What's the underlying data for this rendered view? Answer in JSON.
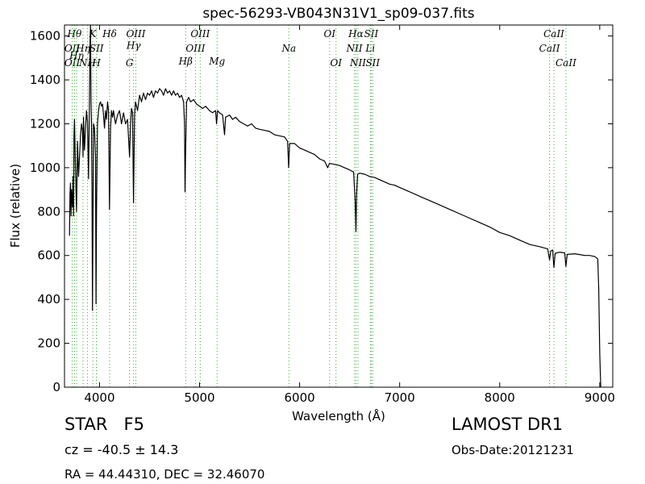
{
  "chart_data": {
    "type": "line",
    "title": "spec-56293-VB043N31V1_sp09-037.fits",
    "xlabel": "Wavelength (Å)",
    "ylabel": "Flux (relative)",
    "xlim": [
      3650,
      9130
    ],
    "ylim": [
      0,
      1650
    ],
    "xticks": [
      4000,
      5000,
      6000,
      7000,
      8000,
      9000
    ],
    "yticks": [
      0,
      200,
      400,
      600,
      800,
      1000,
      1200,
      1400,
      1600
    ],
    "grid": false,
    "line_color": "#000000",
    "marker_line_color": "#33aa33",
    "series": [
      {
        "values": [
          [
            3700,
            690
          ],
          [
            3705,
            880
          ],
          [
            3710,
            930
          ],
          [
            3715,
            780
          ],
          [
            3720,
            900
          ],
          [
            3730,
            820
          ],
          [
            3735,
            960
          ],
          [
            3740,
            780
          ],
          [
            3745,
            1150
          ],
          [
            3750,
            1220
          ],
          [
            3760,
            1000
          ],
          [
            3770,
            800
          ],
          [
            3780,
            1120
          ],
          [
            3790,
            960
          ],
          [
            3800,
            1050
          ],
          [
            3810,
            1150
          ],
          [
            3820,
            1200
          ],
          [
            3830,
            1170
          ],
          [
            3835,
            1050
          ],
          [
            3840,
            1230
          ],
          [
            3850,
            1080
          ],
          [
            3860,
            1180
          ],
          [
            3870,
            1260
          ],
          [
            3880,
            1210
          ],
          [
            3890,
            950
          ],
          [
            3900,
            1320
          ],
          [
            3905,
            1560
          ],
          [
            3910,
            1650
          ],
          [
            3915,
            1300
          ],
          [
            3920,
            1200
          ],
          [
            3925,
            900
          ],
          [
            3930,
            350
          ],
          [
            3935,
            800
          ],
          [
            3940,
            1200
          ],
          [
            3950,
            1180
          ],
          [
            3960,
            1050
          ],
          [
            3965,
            380
          ],
          [
            3970,
            800
          ],
          [
            3980,
            1200
          ],
          [
            3990,
            1260
          ],
          [
            4000,
            1290
          ],
          [
            4010,
            1300
          ],
          [
            4020,
            1280
          ],
          [
            4030,
            1290
          ],
          [
            4040,
            1240
          ],
          [
            4050,
            1180
          ],
          [
            4060,
            1260
          ],
          [
            4070,
            1220
          ],
          [
            4080,
            1300
          ],
          [
            4090,
            1260
          ],
          [
            4100,
            810
          ],
          [
            4110,
            1180
          ],
          [
            4120,
            1260
          ],
          [
            4130,
            1230
          ],
          [
            4140,
            1260
          ],
          [
            4150,
            1230
          ],
          [
            4160,
            1200
          ],
          [
            4180,
            1240
          ],
          [
            4200,
            1260
          ],
          [
            4220,
            1200
          ],
          [
            4240,
            1250
          ],
          [
            4260,
            1200
          ],
          [
            4280,
            1220
          ],
          [
            4300,
            1050
          ],
          [
            4310,
            1200
          ],
          [
            4320,
            1270
          ],
          [
            4330,
            1250
          ],
          [
            4340,
            840
          ],
          [
            4350,
            1240
          ],
          [
            4360,
            1300
          ],
          [
            4380,
            1260
          ],
          [
            4400,
            1330
          ],
          [
            4420,
            1300
          ],
          [
            4440,
            1340
          ],
          [
            4460,
            1310
          ],
          [
            4480,
            1340
          ],
          [
            4500,
            1330
          ],
          [
            4520,
            1350
          ],
          [
            4540,
            1320
          ],
          [
            4560,
            1350
          ],
          [
            4580,
            1340
          ],
          [
            4600,
            1360
          ],
          [
            4620,
            1350
          ],
          [
            4640,
            1330
          ],
          [
            4660,
            1360
          ],
          [
            4680,
            1340
          ],
          [
            4700,
            1350
          ],
          [
            4720,
            1330
          ],
          [
            4740,
            1350
          ],
          [
            4760,
            1330
          ],
          [
            4780,
            1340
          ],
          [
            4800,
            1320
          ],
          [
            4820,
            1330
          ],
          [
            4840,
            1300
          ],
          [
            4850,
            1200
          ],
          [
            4855,
            890
          ],
          [
            4860,
            1050
          ],
          [
            4870,
            1300
          ],
          [
            4890,
            1320
          ],
          [
            4910,
            1300
          ],
          [
            4940,
            1310
          ],
          [
            4970,
            1290
          ],
          [
            5000,
            1280
          ],
          [
            5030,
            1270
          ],
          [
            5060,
            1280
          ],
          [
            5100,
            1260
          ],
          [
            5130,
            1250
          ],
          [
            5160,
            1260
          ],
          [
            5170,
            1200
          ],
          [
            5180,
            1260
          ],
          [
            5200,
            1250
          ],
          [
            5230,
            1240
          ],
          [
            5250,
            1150
          ],
          [
            5260,
            1230
          ],
          [
            5300,
            1240
          ],
          [
            5330,
            1220
          ],
          [
            5360,
            1230
          ],
          [
            5400,
            1210
          ],
          [
            5440,
            1200
          ],
          [
            5480,
            1190
          ],
          [
            5520,
            1200
          ],
          [
            5560,
            1180
          ],
          [
            5600,
            1175
          ],
          [
            5650,
            1170
          ],
          [
            5700,
            1165
          ],
          [
            5750,
            1150
          ],
          [
            5800,
            1145
          ],
          [
            5850,
            1140
          ],
          [
            5880,
            1120
          ],
          [
            5890,
            1000
          ],
          [
            5900,
            1110
          ],
          [
            5950,
            1110
          ],
          [
            6000,
            1090
          ],
          [
            6050,
            1080
          ],
          [
            6100,
            1070
          ],
          [
            6150,
            1060
          ],
          [
            6200,
            1040
          ],
          [
            6250,
            1030
          ],
          [
            6280,
            1000
          ],
          [
            6300,
            1020
          ],
          [
            6350,
            1015
          ],
          [
            6400,
            1010
          ],
          [
            6450,
            1000
          ],
          [
            6500,
            990
          ],
          [
            6540,
            980
          ],
          [
            6555,
            850
          ],
          [
            6563,
            710
          ],
          [
            6570,
            880
          ],
          [
            6580,
            970
          ],
          [
            6600,
            975
          ],
          [
            6650,
            970
          ],
          [
            6700,
            960
          ],
          [
            6750,
            955
          ],
          [
            6800,
            945
          ],
          [
            6850,
            935
          ],
          [
            6900,
            925
          ],
          [
            6950,
            920
          ],
          [
            7000,
            910
          ],
          [
            7100,
            890
          ],
          [
            7200,
            870
          ],
          [
            7300,
            850
          ],
          [
            7400,
            830
          ],
          [
            7500,
            810
          ],
          [
            7600,
            790
          ],
          [
            7700,
            770
          ],
          [
            7800,
            750
          ],
          [
            7900,
            730
          ],
          [
            8000,
            705
          ],
          [
            8100,
            690
          ],
          [
            8200,
            670
          ],
          [
            8300,
            650
          ],
          [
            8400,
            640
          ],
          [
            8480,
            630
          ],
          [
            8498,
            580
          ],
          [
            8510,
            620
          ],
          [
            8530,
            625
          ],
          [
            8542,
            545
          ],
          [
            8555,
            610
          ],
          [
            8600,
            615
          ],
          [
            8650,
            612
          ],
          [
            8662,
            550
          ],
          [
            8675,
            605
          ],
          [
            8750,
            608
          ],
          [
            8800,
            604
          ],
          [
            8850,
            600
          ],
          [
            8900,
            600
          ],
          [
            8950,
            595
          ],
          [
            8980,
            585
          ],
          [
            8990,
            450
          ],
          [
            9000,
            150
          ],
          [
            9010,
            0
          ]
        ]
      }
    ],
    "lines": [
      {
        "x": 3727,
        "label": "OII",
        "row": 1
      },
      {
        "x": 3727,
        "label": "OII",
        "row": 2
      },
      {
        "x": 3750,
        "label": "Hθ",
        "row": 0
      },
      {
        "x": 3771,
        "label": "Hη",
        "row": 1.5
      },
      {
        "x": 3835,
        "label": "Hη",
        "row": 1
      },
      {
        "x": 3880,
        "label": "NH",
        "row": 2
      },
      {
        "x": 3933,
        "label": "K",
        "row": 0
      },
      {
        "x": 3969,
        "label": "H",
        "row": 2
      },
      {
        "x": 3970,
        "label": "SII",
        "row": 1
      },
      {
        "x": 4101,
        "label": "Hδ",
        "row": 0
      },
      {
        "x": 4300,
        "label": "G",
        "row": 2
      },
      {
        "x": 4341,
        "label": "Hγ",
        "row": 0.8
      },
      {
        "x": 4363,
        "label": "OIII",
        "row": 0
      },
      {
        "x": 4861,
        "label": "Hβ",
        "row": 1.9
      },
      {
        "x": 4959,
        "label": "OIII",
        "row": 1
      },
      {
        "x": 5007,
        "label": "OIII",
        "row": 0
      },
      {
        "x": 5175,
        "label": "Mg",
        "row": 1.9
      },
      {
        "x": 5893,
        "label": "Na",
        "row": 1
      },
      {
        "x": 6300,
        "label": "OI",
        "row": 0
      },
      {
        "x": 6364,
        "label": "OI",
        "row": 2
      },
      {
        "x": 6548,
        "label": "NII",
        "row": 1
      },
      {
        "x": 6563,
        "label": "Hα",
        "row": 0
      },
      {
        "x": 6583,
        "label": "NII",
        "row": 2
      },
      {
        "x": 6707,
        "label": "Li",
        "row": 1
      },
      {
        "x": 6716,
        "label": "SII",
        "row": 0
      },
      {
        "x": 6731,
        "label": "SII",
        "row": 2
      },
      {
        "x": 8498,
        "label": "CaII",
        "row": 1
      },
      {
        "x": 8542,
        "label": "CaII",
        "row": 0
      },
      {
        "x": 8662,
        "label": "CaII",
        "row": 2
      }
    ]
  },
  "info": {
    "class_label": "STAR",
    "subclass_label": "F5",
    "survey": "LAMOST DR1",
    "cz": "cz = -40.5 ± 14.3",
    "obs_date": "Obs-Date:20121231",
    "radec": "RA = 44.44310, DEC = 32.46070"
  }
}
